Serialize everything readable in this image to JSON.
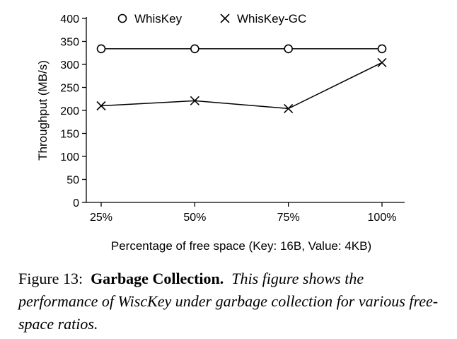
{
  "chart_data": {
    "type": "line",
    "categories": [
      "25%",
      "50%",
      "75%",
      "100%"
    ],
    "series": [
      {
        "name": "WhisKey",
        "marker": "circle",
        "values": [
          334,
          334,
          334,
          334
        ]
      },
      {
        "name": "WhisKey-GC",
        "marker": "x",
        "values": [
          210,
          221,
          204,
          304
        ]
      }
    ],
    "yticks": [
      0,
      50,
      100,
      150,
      200,
      250,
      300,
      350,
      400
    ],
    "ylim": [
      0,
      400
    ],
    "ylabel": "Throughput (MB/s)",
    "xlabel": "Percentage of free space (Key: 16B, Value: 4KB)",
    "legend_position": "top",
    "grid": false
  },
  "caption": {
    "figure_label": "Figure 13:",
    "title": "Garbage Collection.",
    "text": "This figure shows the performance of WiscKey under garbage collection for various free-space ratios."
  }
}
